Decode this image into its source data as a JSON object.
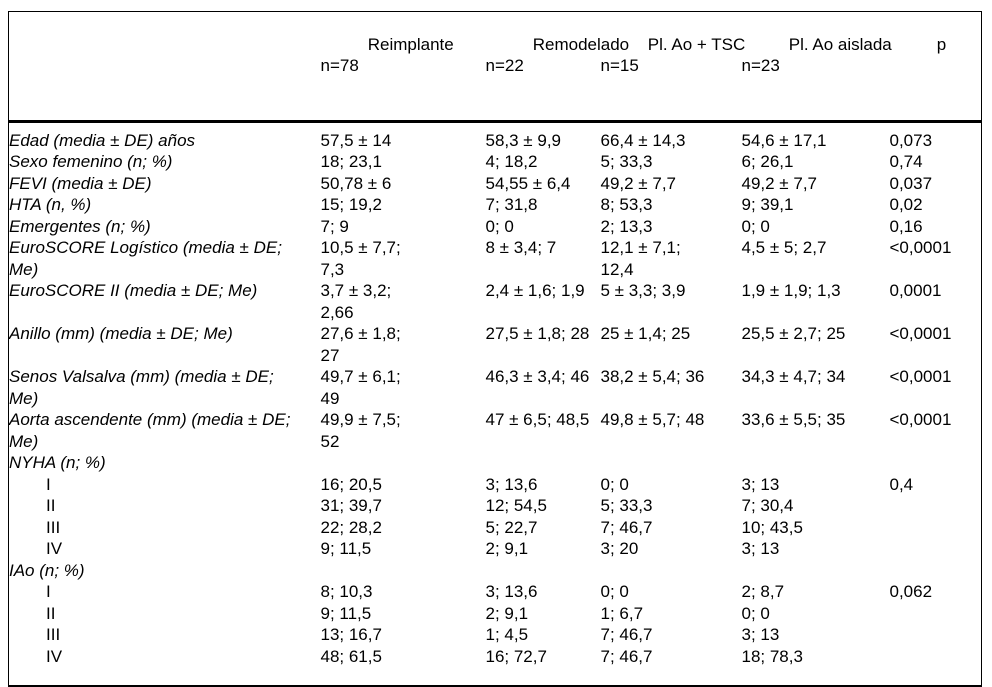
{
  "table": {
    "header": {
      "columns": [
        {
          "title": "",
          "sub": ""
        },
        {
          "title": "Reimplante",
          "sub": "n=78"
        },
        {
          "title": "Remodelado",
          "sub": "n=22"
        },
        {
          "title": "Pl. Ao + TSC",
          "sub": "n=15"
        },
        {
          "title": "Pl. Ao aislada",
          "sub": "n=23"
        },
        {
          "title": "p",
          "sub": ""
        }
      ]
    },
    "rows": [
      {
        "label": "Edad (media ± DE) años",
        "indent": false,
        "values": [
          "57,5 ± 14",
          "58,3 ± 9,9",
          "66,4 ± 14,3",
          "54,6 ± 17,1",
          "0,073"
        ]
      },
      {
        "label": "Sexo femenino (n; %)",
        "indent": false,
        "values": [
          "18; 23,1",
          "4; 18,2",
          "5; 33,3",
          "6; 26,1",
          "0,74"
        ]
      },
      {
        "label": "FEVI (media ± DE)",
        "indent": false,
        "values": [
          "50,78 ± 6",
          "54,55 ± 6,4",
          "49,2 ± 7,7",
          "49,2 ± 7,7",
          "0,037"
        ]
      },
      {
        "label": "HTA (n, %)",
        "indent": false,
        "values": [
          "15; 19,2",
          "7; 31,8",
          "8; 53,3",
          "9; 39,1",
          "0,02"
        ]
      },
      {
        "label": "Emergentes (n; %)",
        "indent": false,
        "values": [
          "7; 9",
          "0; 0",
          "2; 13,3",
          "0; 0",
          "0,16"
        ]
      },
      {
        "label": "EuroSCORE Logístico (media ± DE;\nMe)",
        "indent": false,
        "values": [
          "10,5 ± 7,7;\n7,3",
          "8 ± 3,4; 7",
          "12,1 ± 7,1;\n12,4",
          "4,5 ± 5; 2,7",
          "<0,0001"
        ]
      },
      {
        "label": "EuroSCORE II (media ± DE; Me)",
        "indent": false,
        "values": [
          "3,7 ± 3,2;\n2,66",
          "2,4 ± 1,6; 1,9",
          "5 ± 3,3; 3,9",
          "1,9 ± 1,9; 1,3",
          "0,0001"
        ]
      },
      {
        "label": "Anillo (mm) (media ± DE; Me)",
        "indent": false,
        "values": [
          "27,6 ± 1,8;\n27",
          "27,5 ± 1,8; 28",
          "25 ± 1,4; 25",
          "25,5 ± 2,7; 25",
          "<0,0001"
        ]
      },
      {
        "label": "Senos Valsalva (mm) (media ± DE;\nMe)",
        "indent": false,
        "values": [
          "49,7 ± 6,1;\n49",
          "46,3 ± 3,4; 46",
          "38,2 ± 5,4; 36",
          "34,3 ± 4,7; 34",
          "<0,0001"
        ]
      },
      {
        "label": "Aorta ascendente (mm) (media ± DE;\nMe)",
        "indent": false,
        "values": [
          "49,9 ± 7,5;\n52",
          "47 ± 6,5; 48,5",
          "49,8 ± 5,7; 48",
          "33,6 ± 5,5; 35",
          "<0,0001"
        ]
      },
      {
        "label": "NYHA (n; %)",
        "indent": false,
        "values": [
          "",
          "",
          "",
          "",
          ""
        ]
      },
      {
        "label": "I",
        "indent": true,
        "values": [
          "16; 20,5",
          "3; 13,6",
          "0; 0",
          "3; 13",
          "0,4"
        ]
      },
      {
        "label": "II",
        "indent": true,
        "values": [
          "31; 39,7",
          "12; 54,5",
          "5; 33,3",
          "7; 30,4",
          ""
        ]
      },
      {
        "label": "III",
        "indent": true,
        "values": [
          "22; 28,2",
          "5; 22,7",
          "7; 46,7",
          "10; 43,5",
          ""
        ]
      },
      {
        "label": "IV",
        "indent": true,
        "values": [
          "9; 11,5",
          "2; 9,1",
          "3; 20",
          "3; 13",
          ""
        ]
      },
      {
        "label": "IAo (n; %)",
        "indent": false,
        "values": [
          "",
          "",
          "",
          "",
          ""
        ]
      },
      {
        "label": "I",
        "indent": true,
        "values": [
          "8; 10,3",
          "3; 13,6",
          "0; 0",
          "2; 8,7",
          "0,062"
        ]
      },
      {
        "label": "II",
        "indent": true,
        "values": [
          "9; 11,5",
          "2; 9,1",
          "1; 6,7",
          "0; 0",
          ""
        ]
      },
      {
        "label": "III",
        "indent": true,
        "values": [
          "13; 16,7",
          "1; 4,5",
          "7; 46,7",
          "3; 13",
          ""
        ]
      },
      {
        "label": "IV",
        "indent": true,
        "values": [
          "48; 61,5",
          "16; 72,7",
          "7; 46,7",
          "18; 78,3",
          ""
        ]
      }
    ]
  }
}
